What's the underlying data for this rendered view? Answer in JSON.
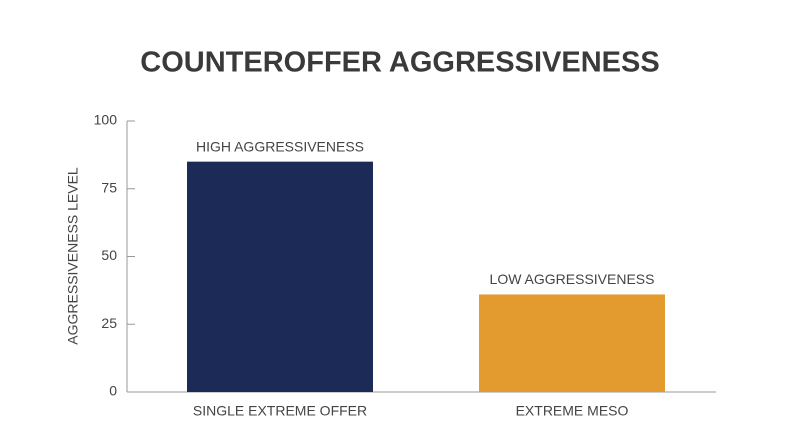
{
  "chart_data": {
    "type": "bar",
    "title": "COUNTEROFFER AGGRESSIVENESS",
    "ylabel": "AGGRESSIVENESS LEVEL",
    "categories": [
      "SINGLE EXTREME OFFER",
      "EXTREME MESO"
    ],
    "values": [
      85,
      36
    ],
    "annotations": [
      "HIGH AGGRESSIVENESS",
      "LOW AGGRESSIVENESS"
    ],
    "colors": [
      "#1b2a57",
      "#e39b2f"
    ],
    "ylim": [
      0,
      100
    ],
    "yticks": [
      0,
      25,
      50,
      75,
      100
    ],
    "grid": false
  }
}
